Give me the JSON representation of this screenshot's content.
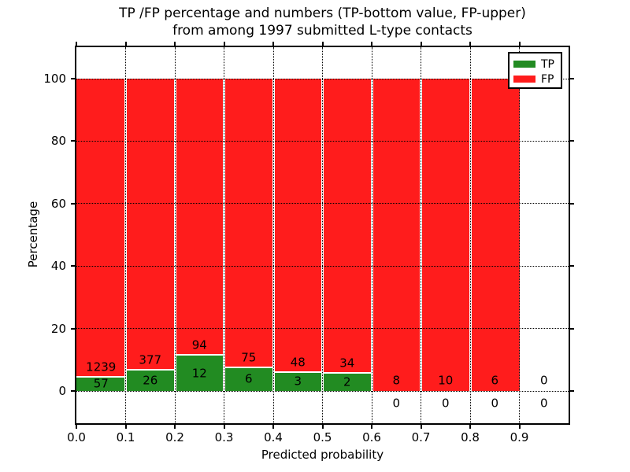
{
  "figure": {
    "title_line1": "TP /FP percentage and numbers (TP-bottom value, FP-upper)",
    "title_line2": "from among 1997 submitted L-type contacts",
    "xlabel": "Predicted probability",
    "ylabel": "Percentage"
  },
  "legend": {
    "items": [
      {
        "label": "TP",
        "color": "#228b22"
      },
      {
        "label": "FP",
        "color": "#ff1c1c"
      }
    ]
  },
  "chart_data": {
    "type": "bar",
    "stacked": true,
    "title": "TP /FP percentage and numbers (TP-bottom value, FP-upper) from among 1997 submitted L-type contacts",
    "xlabel": "Predicted probability",
    "ylabel": "Percentage",
    "xlim": [
      0.0,
      1.0
    ],
    "ylim": [
      -10.8,
      110.1
    ],
    "x_tick_labels": [
      "0.0",
      "0.1",
      "0.2",
      "0.3",
      "0.4",
      "0.5",
      "0.6",
      "0.7",
      "0.8",
      "0.9"
    ],
    "y_tick_labels": [
      "0",
      "20",
      "40",
      "60",
      "80",
      "100"
    ],
    "y_tick_values": [
      0,
      20,
      40,
      60,
      80,
      100
    ],
    "grid": "dotted, both axes, drawn over bars",
    "legend_position": "upper right",
    "tp_color": "#228b22",
    "fp_color": "#ff1c1c",
    "bar_width": 0.1,
    "bins": [
      {
        "x_range": [
          0.0,
          0.1
        ],
        "tp_count": 57,
        "fp_count": 1239
      },
      {
        "x_range": [
          0.1,
          0.2
        ],
        "tp_count": 26,
        "fp_count": 377
      },
      {
        "x_range": [
          0.2,
          0.3
        ],
        "tp_count": 12,
        "fp_count": 94
      },
      {
        "x_range": [
          0.3,
          0.4
        ],
        "tp_count": 6,
        "fp_count": 75
      },
      {
        "x_range": [
          0.4,
          0.5
        ],
        "tp_count": 3,
        "fp_count": 48
      },
      {
        "x_range": [
          0.5,
          0.6
        ],
        "tp_count": 2,
        "fp_count": 34
      },
      {
        "x_range": [
          0.6,
          0.7
        ],
        "tp_count": 0,
        "fp_count": 8
      },
      {
        "x_range": [
          0.7,
          0.8
        ],
        "tp_count": 0,
        "fp_count": 10
      },
      {
        "x_range": [
          0.8,
          0.9
        ],
        "tp_count": 0,
        "fp_count": 6
      },
      {
        "x_range": [
          0.9,
          1.0
        ],
        "tp_count": 0,
        "fp_count": 0
      }
    ]
  }
}
